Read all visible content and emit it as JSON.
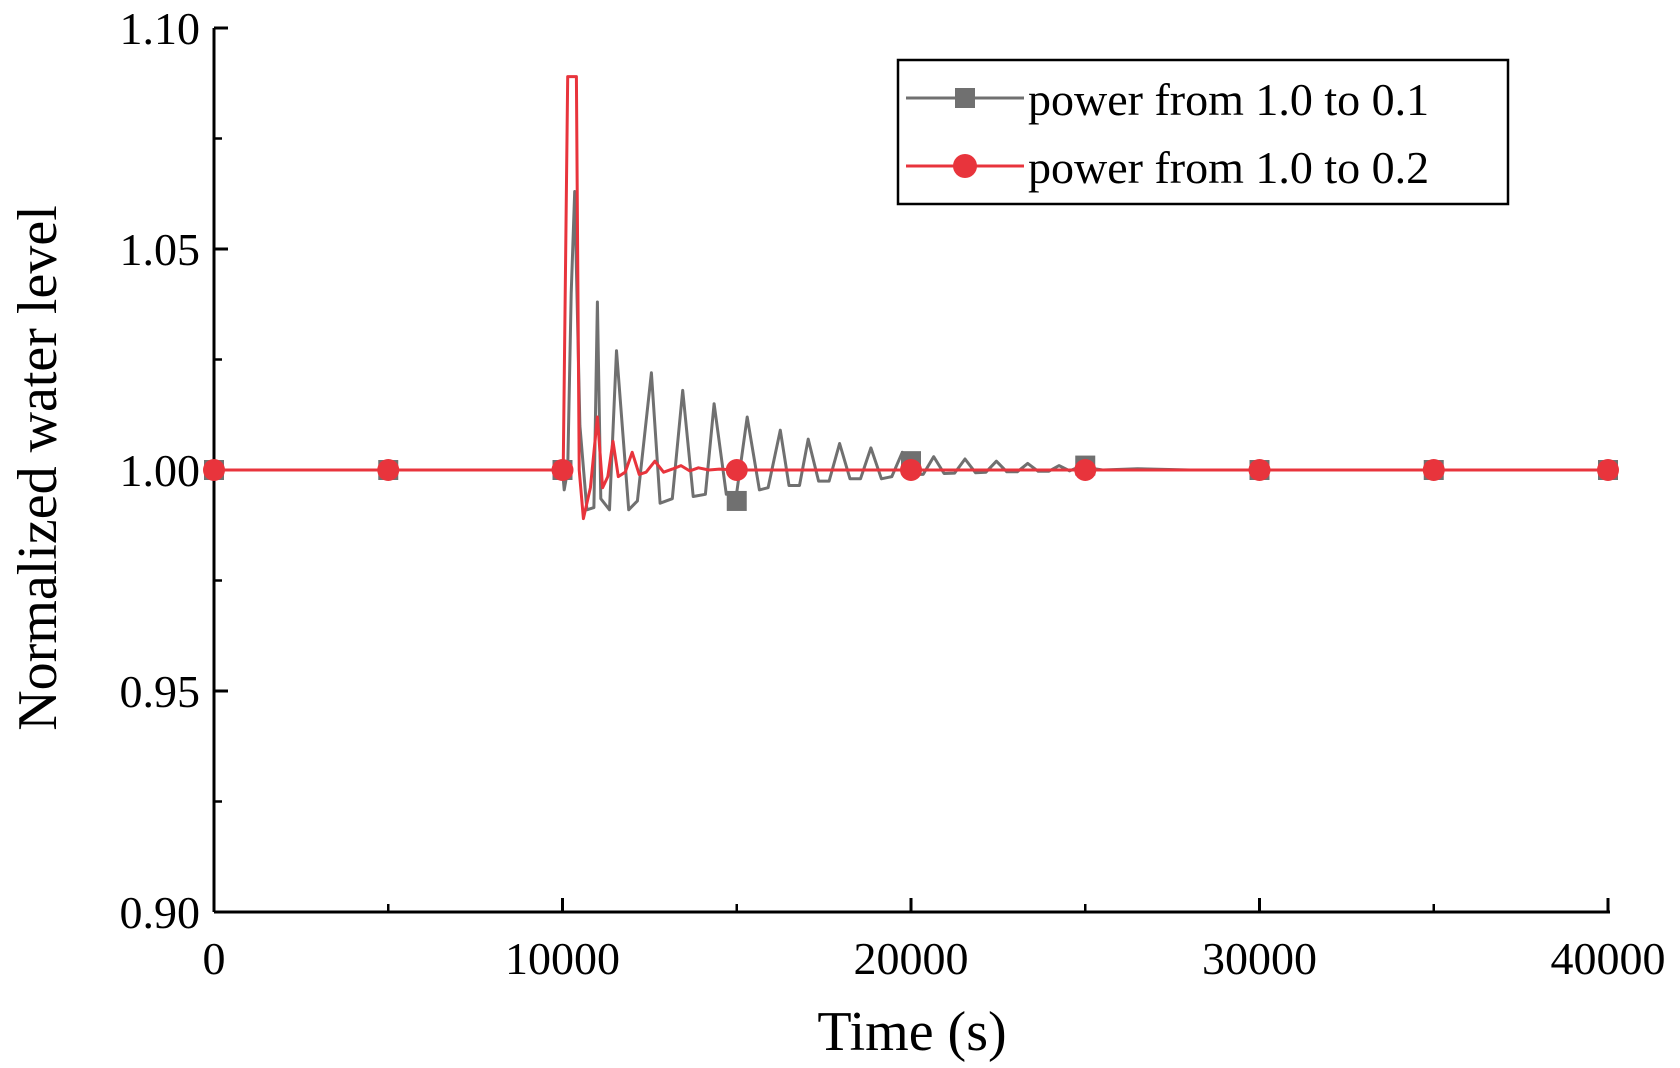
{
  "chart_data": {
    "type": "line",
    "title": "",
    "xlabel": "Time (s)",
    "ylabel": "Normalized water level",
    "xlim": [
      0,
      40000
    ],
    "ylim": [
      0.9,
      1.1
    ],
    "x_ticks": [
      0,
      10000,
      20000,
      30000,
      40000
    ],
    "x_tick_labels": [
      "0",
      "10000",
      "20000",
      "30000",
      "40000"
    ],
    "x_minor_ticks": [
      5000,
      15000,
      25000,
      35000
    ],
    "y_ticks": [
      0.9,
      0.95,
      1.0,
      1.05,
      1.1
    ],
    "y_tick_labels": [
      "0.90",
      "0.95",
      "1.00",
      "1.05",
      "1.10"
    ],
    "y_minor_ticks": [
      0.925,
      0.975,
      1.025,
      1.075
    ],
    "grid": false,
    "legend_position": "top-right",
    "series": [
      {
        "name": "power from 1.0 to 0.1",
        "color": "#707070",
        "marker": "square",
        "x": [
          0,
          10000,
          10050,
          10150,
          10250,
          10350,
          10500,
          10700,
          10900,
          11000,
          11100,
          11350,
          11550,
          11900,
          12150,
          12550,
          12800,
          13150,
          13450,
          13750,
          14100,
          14350,
          14700,
          15000,
          15300,
          15650,
          15900,
          16250,
          16500,
          16800,
          17050,
          17350,
          17650,
          17950,
          18250,
          18550,
          18850,
          19150,
          19450,
          19750,
          20050,
          20350,
          20650,
          20950,
          21250,
          21550,
          21850,
          22150,
          22450,
          22750,
          23050,
          23350,
          23650,
          23950,
          24250,
          24550,
          24850,
          25500,
          26500,
          28000,
          30000,
          35000,
          40000
        ],
        "y": [
          1.0,
          1.0,
          0.9955,
          1.0,
          1.04,
          1.063,
          1.01,
          0.991,
          0.9915,
          1.038,
          0.9935,
          0.991,
          1.027,
          0.991,
          0.993,
          1.022,
          0.9925,
          0.9935,
          1.018,
          0.994,
          0.9945,
          1.015,
          0.9945,
          0.995,
          1.012,
          0.9955,
          0.996,
          1.009,
          0.9965,
          0.9965,
          1.007,
          0.9975,
          0.9975,
          1.006,
          0.998,
          0.998,
          1.005,
          0.998,
          0.9985,
          1.004,
          0.999,
          0.999,
          1.003,
          0.9992,
          0.9993,
          1.0025,
          0.9994,
          0.9995,
          1.002,
          0.9996,
          0.9996,
          1.0015,
          0.9997,
          0.9997,
          1.001,
          0.9998,
          1.0008,
          1.0,
          1.0003,
          1.0,
          1.0,
          1.0,
          1.0
        ],
        "marker_x": [
          0,
          5000,
          10000,
          15000,
          20000,
          25000,
          30000,
          35000,
          40000
        ],
        "marker_y": [
          1.0,
          1.0,
          1.0,
          0.993,
          1.002,
          1.001,
          1.0,
          1.0,
          1.0
        ]
      },
      {
        "name": "power from 1.0 to 0.2",
        "color": "#e8343c",
        "marker": "circle",
        "x": [
          0,
          10000,
          10020,
          10150,
          10400,
          10480,
          10600,
          10800,
          11000,
          11150,
          11300,
          11450,
          11600,
          11800,
          12000,
          12200,
          12400,
          12650,
          12900,
          13150,
          13400,
          13650,
          13900,
          14200,
          14500,
          15000,
          16000,
          40000
        ],
        "y": [
          1.0,
          1.0,
          1.0,
          1.089,
          1.089,
          1.0,
          0.989,
          0.996,
          1.012,
          0.996,
          0.9985,
          1.0065,
          0.9985,
          0.9995,
          1.004,
          0.999,
          0.9995,
          1.002,
          0.9995,
          1.0002,
          1.001,
          0.9998,
          1.0005,
          1.0,
          1.0002,
          1.0,
          1.0,
          1.0
        ],
        "marker_x": [
          0,
          5000,
          10000,
          15000,
          20000,
          25000,
          30000,
          35000,
          40000
        ],
        "marker_y": [
          1.0,
          1.0,
          1.0,
          1.0,
          1.0,
          1.0,
          1.0,
          1.0,
          1.0
        ]
      }
    ]
  }
}
